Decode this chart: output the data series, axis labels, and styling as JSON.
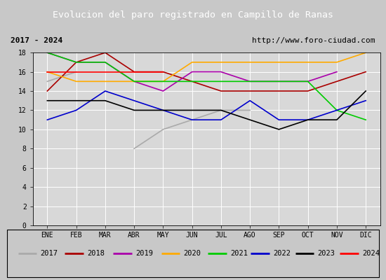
{
  "title": "Evolucion del paro registrado en Campillo de Ranas",
  "subtitle_left": "2017 - 2024",
  "subtitle_right": "http://www.foro-ciudad.com",
  "months": [
    "ENE",
    "FEB",
    "MAR",
    "ABR",
    "MAY",
    "JUN",
    "JUL",
    "AGO",
    "SEP",
    "OCT",
    "NOV",
    "DIC"
  ],
  "ylim": [
    0,
    18
  ],
  "yticks": [
    0,
    2,
    4,
    6,
    8,
    10,
    12,
    14,
    16,
    18
  ],
  "series": {
    "2017": {
      "color": "#aaaaaa",
      "values": [
        15,
        16,
        null,
        8,
        10,
        11,
        12,
        12,
        null,
        null,
        null,
        null
      ]
    },
    "2018": {
      "color": "#aa0000",
      "values": [
        14,
        17,
        18,
        16,
        16,
        15,
        14,
        14,
        14,
        14,
        15,
        16
      ]
    },
    "2019": {
      "color": "#aa00aa",
      "values": [
        18,
        17,
        17,
        15,
        14,
        16,
        16,
        15,
        15,
        15,
        16,
        null
      ]
    },
    "2020": {
      "color": "#ffaa00",
      "values": [
        16,
        15,
        15,
        15,
        15,
        17,
        17,
        17,
        17,
        17,
        17,
        18
      ]
    },
    "2021": {
      "color": "#00cc00",
      "values": [
        18,
        17,
        17,
        15,
        15,
        15,
        15,
        15,
        15,
        15,
        12,
        11
      ]
    },
    "2022": {
      "color": "#0000cc",
      "values": [
        11,
        12,
        14,
        13,
        12,
        11,
        11,
        13,
        11,
        11,
        12,
        13
      ]
    },
    "2023": {
      "color": "#000000",
      "values": [
        13,
        13,
        13,
        12,
        12,
        12,
        12,
        11,
        10,
        11,
        11,
        14
      ]
    },
    "2024": {
      "color": "#ff0000",
      "values": [
        16,
        16,
        16,
        16,
        16,
        null,
        null,
        null,
        null,
        null,
        null,
        null
      ]
    }
  },
  "title_bg_color": "#4472c4",
  "title_color": "#ffffff",
  "header_bg_color": "#e8e8e8",
  "plot_bg_color": "#d8d8d8",
  "legend_bg_color": "#e8e8e8",
  "outer_bg_color": "#c8c8c8"
}
